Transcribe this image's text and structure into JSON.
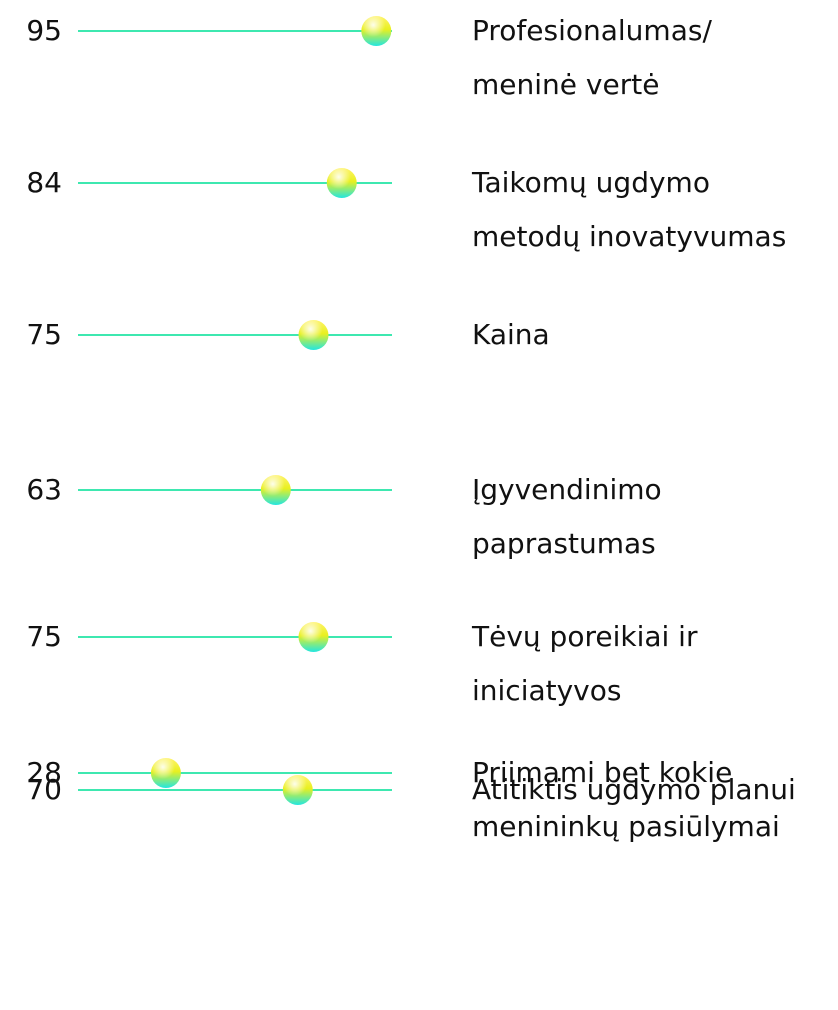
{
  "chart_data": {
    "type": "slider",
    "categories": [
      "Profesionalumas/\nmeninė vertė",
      "Taikomų ugdymo\nmetodų inovatyvumas",
      "Kaina",
      "Įgyvendinimo\npaprastumas",
      "Tėvų poreikiai ir\niniciatyvos",
      "Atitiktis ugdymo planui",
      "Priimami bet kokie\nmenininkų pasiūlymai"
    ],
    "values": [
      95,
      84,
      75,
      63,
      75,
      70,
      28
    ],
    "xlim": [
      0,
      100
    ],
    "track_color": "#3ee8b0"
  }
}
